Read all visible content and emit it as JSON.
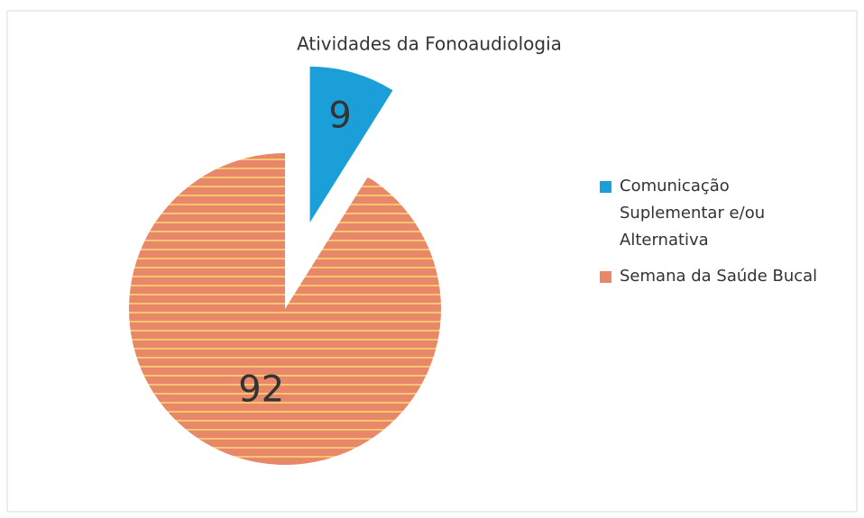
{
  "chart_data": {
    "type": "pie",
    "title": "Atividades da Fonoaudiologia",
    "categories": [
      "Comunicação Suplementar e/ou Alternativa",
      "Semana da Saúde Bucal"
    ],
    "values": [
      9,
      92
    ],
    "colors": [
      "#1a9fd9",
      "#e8876a"
    ]
  }
}
